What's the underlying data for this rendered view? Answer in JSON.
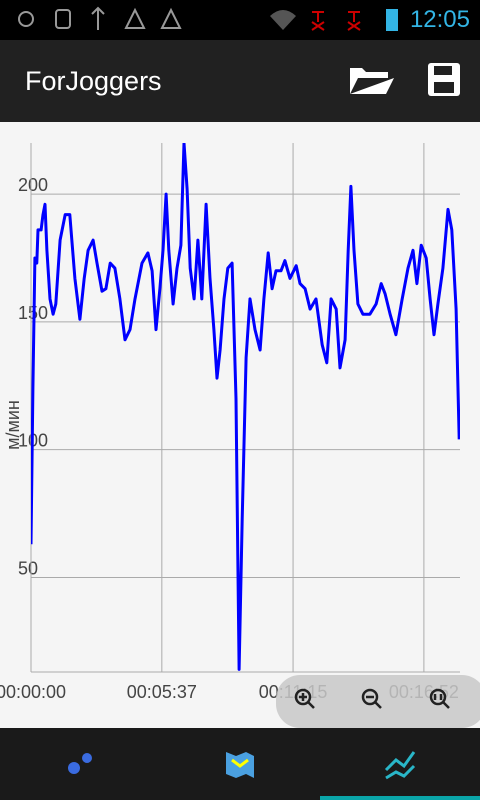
{
  "status_bar": {
    "time": "12:05"
  },
  "app_bar": {
    "title": "ForJoggers"
  },
  "chart_data": {
    "type": "line",
    "y_label": "м/мин",
    "color": "#0000ff",
    "grid": true,
    "xlim": [
      0,
      1105
    ],
    "ylim": [
      13,
      220
    ],
    "xticks": [
      {
        "value": 0,
        "label": "00:00:00"
      },
      {
        "value": 337,
        "label": "00:05:37"
      },
      {
        "value": 675,
        "label": "00:11:15"
      },
      {
        "value": 1012,
        "label": "00:16:52"
      }
    ],
    "yticks": [
      50,
      100,
      150,
      200
    ],
    "x": [
      0,
      5,
      10,
      15,
      18,
      26,
      31,
      36,
      41,
      49,
      57,
      64,
      75,
      88,
      100,
      113,
      126,
      137,
      147,
      160,
      170,
      183,
      193,
      204,
      216,
      229,
      242,
      255,
      268,
      286,
      301,
      312,
      322,
      332,
      340,
      348,
      355,
      366,
      376,
      386,
      394,
      402,
      410,
      420,
      430,
      440,
      451,
      461,
      471,
      479,
      487,
      497,
      507,
      518,
      528,
      536,
      544,
      554,
      564,
      577,
      590,
      600,
      611,
      621,
      631,
      644,
      654,
      667,
      683,
      693,
      706,
      719,
      734,
      750,
      762,
      773,
      786,
      796,
      809,
      817,
      824,
      832,
      842,
      855,
      873,
      889,
      902,
      912,
      925,
      940,
      956,
      971,
      984,
      994,
      1005,
      1018,
      1028,
      1038,
      1048,
      1061,
      1074,
      1084,
      1095,
      1103
    ],
    "values": [
      63,
      124,
      175,
      173,
      186,
      186,
      192,
      196,
      178,
      159,
      153,
      157,
      182,
      192,
      192,
      167,
      151,
      167,
      178,
      182,
      173,
      162,
      163,
      173,
      171,
      159,
      143,
      147,
      159,
      173,
      177,
      170,
      147,
      163,
      178,
      200,
      178,
      157,
      171,
      180,
      220,
      202,
      171,
      159,
      182,
      159,
      196,
      167,
      147,
      128,
      139,
      159,
      171,
      173,
      120,
      14,
      73,
      136,
      159,
      147,
      139,
      159,
      177,
      163,
      170,
      170,
      174,
      167,
      172,
      165,
      163,
      155,
      159,
      141,
      134,
      159,
      155,
      132,
      143,
      178,
      203,
      178,
      157,
      153,
      153,
      157,
      165,
      161,
      153,
      145,
      159,
      171,
      178,
      165,
      180,
      175,
      159,
      145,
      157,
      171,
      194,
      186,
      155,
      104
    ]
  }
}
